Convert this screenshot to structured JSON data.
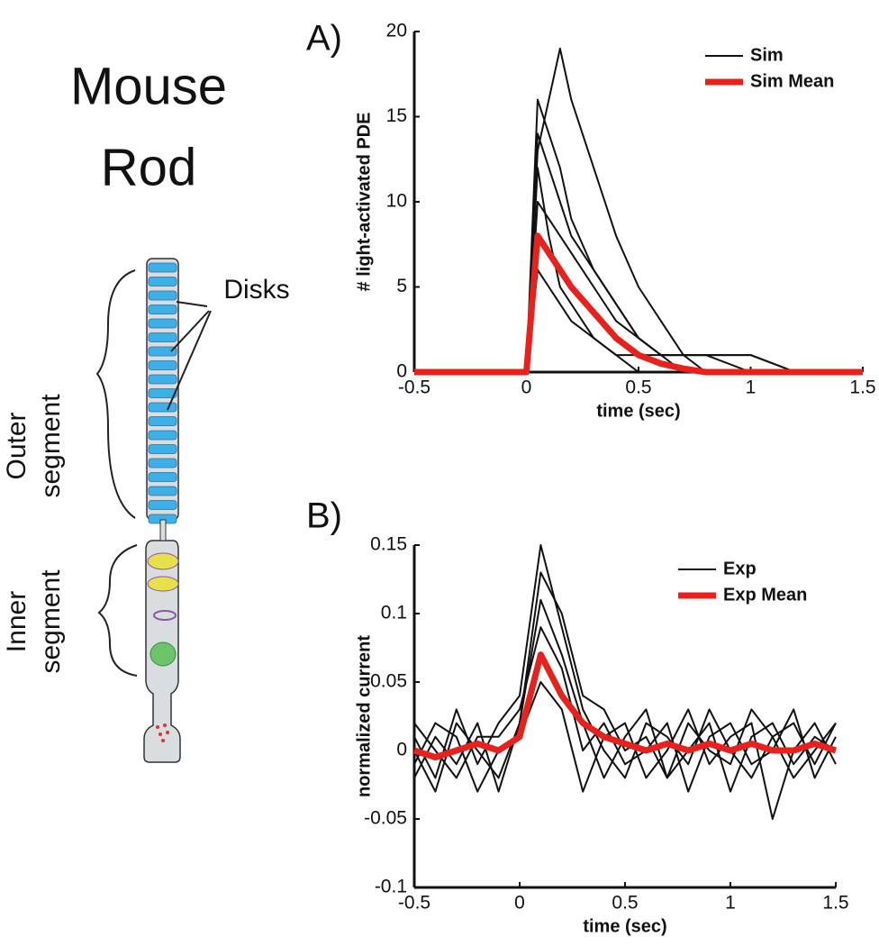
{
  "diagram": {
    "title": [
      "Mouse",
      "Rod"
    ],
    "disks_label": "Disks",
    "outer_label": [
      "Outer",
      "segment"
    ],
    "inner_label": [
      "Inner",
      "segment"
    ]
  },
  "chart_data": [
    {
      "type": "line",
      "panel_label": "A)",
      "xlabel": "time (sec)",
      "ylabel": "# light-activated PDE",
      "x": [
        -0.5,
        0,
        0.05,
        0.1,
        0.15,
        0.2,
        0.3,
        0.4,
        0.5,
        0.6,
        0.7,
        0.8,
        1.0,
        1.2,
        1.5
      ],
      "series": [
        {
          "name": "Sim",
          "color": "#111111",
          "values": [
            0,
            0,
            13,
            16,
            19,
            16,
            12,
            8,
            5,
            3,
            1,
            1,
            1,
            0,
            0
          ]
        },
        {
          "name": "Sim",
          "color": "#111111",
          "values": [
            0,
            0,
            14,
            12,
            10,
            8,
            6,
            4,
            2,
            1,
            0,
            0,
            0,
            0,
            0
          ]
        },
        {
          "name": "Sim",
          "color": "#111111",
          "values": [
            0,
            0,
            10,
            9,
            8,
            7,
            5,
            3,
            2,
            1,
            1,
            0,
            0,
            0,
            0
          ]
        },
        {
          "name": "Sim",
          "color": "#111111",
          "values": [
            0,
            0,
            6,
            5,
            4,
            3,
            2,
            1,
            1,
            1,
            1,
            1,
            1,
            0,
            0
          ]
        },
        {
          "name": "Sim",
          "color": "#111111",
          "values": [
            0,
            0,
            12,
            8,
            5,
            4,
            2,
            1,
            0,
            0,
            0,
            0,
            0,
            0,
            0
          ]
        },
        {
          "name": "Sim",
          "color": "#111111",
          "values": [
            0,
            0,
            16,
            14,
            12,
            9,
            6,
            4,
            2,
            1,
            1,
            1,
            0,
            0,
            0
          ]
        },
        {
          "name": "Sim Mean",
          "color": "#e8211d",
          "thick": true,
          "values": [
            0,
            0,
            8,
            7,
            6,
            5,
            3.5,
            2,
            1,
            0.5,
            0.2,
            0,
            0,
            0,
            0
          ]
        }
      ],
      "xlim": [
        -0.5,
        1.5
      ],
      "xticks": [
        -0.5,
        0,
        0.5,
        1,
        1.5
      ],
      "ylim": [
        0,
        20
      ],
      "yticks": [
        0,
        5,
        10,
        15,
        20
      ],
      "legend": "upper right"
    },
    {
      "type": "line",
      "panel_label": "B)",
      "xlabel": "time (sec)",
      "ylabel": "normalized current",
      "x": [
        -0.5,
        -0.4,
        -0.3,
        -0.2,
        -0.1,
        0,
        0.1,
        0.2,
        0.3,
        0.4,
        0.5,
        0.6,
        0.7,
        0.8,
        0.9,
        1,
        1.1,
        1.2,
        1.3,
        1.4,
        1.5
      ],
      "series": [
        {
          "name": "Exp",
          "color": "#111111",
          "values": [
            0.01,
            -0.02,
            0.03,
            -0.01,
            0.02,
            0.04,
            0.15,
            0.09,
            0.03,
            0.0,
            -0.02,
            0.02,
            0.01,
            -0.01,
            0.03,
            0.0,
            -0.02,
            0.01,
            0.02,
            -0.01,
            0.02
          ]
        },
        {
          "name": "Exp",
          "color": "#111111",
          "values": [
            -0.02,
            0.01,
            -0.01,
            0.02,
            -0.03,
            0.02,
            0.11,
            0.07,
            0.02,
            -0.02,
            0.01,
            0.03,
            -0.02,
            0.0,
            0.02,
            -0.03,
            0.01,
            0.02,
            -0.01,
            0.01,
            0.0
          ]
        },
        {
          "name": "Exp",
          "color": "#111111",
          "values": [
            0.02,
            0.0,
            -0.02,
            0.01,
            0.01,
            0.03,
            0.09,
            0.06,
            0.0,
            0.02,
            -0.01,
            0.0,
            0.02,
            -0.03,
            0.01,
            0.02,
            -0.01,
            0.0,
            0.03,
            -0.02,
            0.01
          ]
        },
        {
          "name": "Exp",
          "color": "#111111",
          "values": [
            -0.01,
            0.02,
            0.01,
            -0.03,
            0.0,
            0.01,
            0.05,
            0.03,
            -0.03,
            0.01,
            0.02,
            -0.02,
            0.0,
            0.03,
            -0.01,
            0.01,
            0.02,
            -0.05,
            0.0,
            0.02,
            -0.01
          ]
        },
        {
          "name": "Exp",
          "color": "#111111",
          "values": [
            0.0,
            -0.03,
            0.02,
            0.0,
            -0.02,
            0.02,
            0.13,
            0.1,
            0.04,
            0.03,
            0.0,
            0.01,
            -0.02,
            0.02,
            0.0,
            -0.01,
            0.03,
            0.01,
            -0.02,
            0.0,
            0.02
          ]
        },
        {
          "name": "Exp Mean",
          "color": "#e8211d",
          "thick": true,
          "values": [
            0,
            -0.005,
            0,
            0.005,
            0,
            0.01,
            0.07,
            0.04,
            0.02,
            0.01,
            0.005,
            0,
            0.005,
            0,
            0.005,
            0,
            0.005,
            0,
            0,
            0.005,
            0
          ]
        }
      ],
      "xlim": [
        -0.5,
        1.5
      ],
      "xticks": [
        -0.5,
        0,
        0.5,
        1,
        1.5
      ],
      "ylim": [
        -0.1,
        0.15
      ],
      "yticks": [
        -0.1,
        -0.05,
        0,
        0.05,
        0.1,
        0.15
      ],
      "legend": "upper right"
    }
  ]
}
